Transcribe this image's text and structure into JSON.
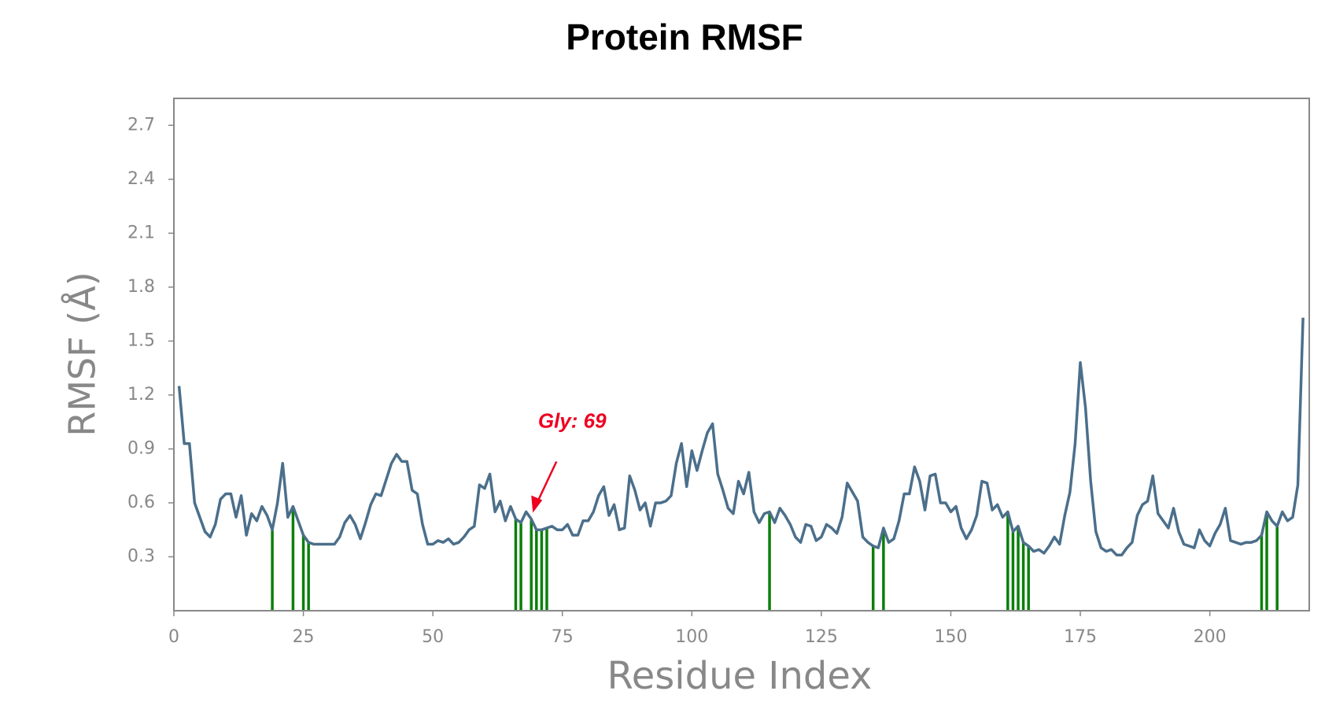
{
  "chart_data": {
    "type": "line",
    "title": "Protein RMSF",
    "xlabel": "Residue Index",
    "ylabel": "RMSF (Å)",
    "x": [
      1,
      2,
      3,
      4,
      5,
      6,
      7,
      8,
      9,
      10,
      11,
      12,
      13,
      14,
      15,
      16,
      17,
      18,
      19,
      20,
      21,
      22,
      23,
      24,
      25,
      26,
      27,
      28,
      29,
      30,
      31,
      32,
      33,
      34,
      35,
      36,
      37,
      38,
      39,
      40,
      41,
      42,
      43,
      44,
      45,
      46,
      47,
      48,
      49,
      50,
      51,
      52,
      53,
      54,
      55,
      56,
      57,
      58,
      59,
      60,
      61,
      62,
      63,
      64,
      65,
      66,
      67,
      68,
      69,
      70,
      71,
      72,
      73,
      74,
      75,
      76,
      77,
      78,
      79,
      80,
      81,
      82,
      83,
      84,
      85,
      86,
      87,
      88,
      89,
      90,
      91,
      92,
      93,
      94,
      95,
      96,
      97,
      98,
      99,
      100,
      101,
      102,
      103,
      104,
      105,
      106,
      107,
      108,
      109,
      110,
      111,
      112,
      113,
      114,
      115,
      116,
      117,
      118,
      119,
      120,
      121,
      122,
      123,
      124,
      125,
      126,
      127,
      128,
      129,
      130,
      131,
      132,
      133,
      134,
      135,
      136,
      137,
      138,
      139,
      140,
      141,
      142,
      143,
      144,
      145,
      146,
      147,
      148,
      149,
      150,
      151,
      152,
      153,
      154,
      155,
      156,
      157,
      158,
      159,
      160,
      161,
      162,
      163,
      164,
      165,
      166,
      167,
      168,
      169,
      170,
      171,
      172,
      173,
      174,
      175,
      176,
      177,
      178,
      179,
      180,
      181,
      182,
      183,
      184,
      185,
      186,
      187,
      188,
      189,
      190,
      191,
      192,
      193,
      194,
      195,
      196,
      197,
      198,
      199,
      200,
      201,
      202,
      203,
      204,
      205,
      206,
      207,
      208,
      209,
      210,
      211,
      212,
      213,
      214,
      215,
      216,
      217,
      218
    ],
    "values": [
      1.25,
      0.93,
      0.93,
      0.6,
      0.52,
      0.44,
      0.41,
      0.48,
      0.62,
      0.65,
      0.65,
      0.52,
      0.64,
      0.42,
      0.54,
      0.5,
      0.58,
      0.53,
      0.45,
      0.6,
      0.82,
      0.52,
      0.58,
      0.5,
      0.42,
      0.38,
      0.37,
      0.37,
      0.37,
      0.37,
      0.37,
      0.41,
      0.49,
      0.53,
      0.48,
      0.4,
      0.49,
      0.59,
      0.65,
      0.64,
      0.73,
      0.82,
      0.87,
      0.83,
      0.83,
      0.67,
      0.65,
      0.48,
      0.37,
      0.37,
      0.39,
      0.38,
      0.4,
      0.37,
      0.38,
      0.41,
      0.45,
      0.47,
      0.7,
      0.68,
      0.76,
      0.55,
      0.61,
      0.5,
      0.58,
      0.51,
      0.49,
      0.55,
      0.51,
      0.45,
      0.45,
      0.46,
      0.47,
      0.45,
      0.45,
      0.48,
      0.42,
      0.42,
      0.5,
      0.5,
      0.55,
      0.64,
      0.69,
      0.53,
      0.59,
      0.45,
      0.46,
      0.75,
      0.67,
      0.56,
      0.6,
      0.47,
      0.6,
      0.6,
      0.61,
      0.64,
      0.82,
      0.93,
      0.69,
      0.89,
      0.78,
      0.89,
      0.99,
      1.04,
      0.76,
      0.67,
      0.57,
      0.54,
      0.72,
      0.65,
      0.77,
      0.55,
      0.49,
      0.54,
      0.55,
      0.49,
      0.57,
      0.53,
      0.48,
      0.41,
      0.38,
      0.48,
      0.47,
      0.39,
      0.41,
      0.48,
      0.46,
      0.43,
      0.52,
      0.71,
      0.66,
      0.61,
      0.41,
      0.38,
      0.36,
      0.35,
      0.46,
      0.38,
      0.4,
      0.5,
      0.65,
      0.65,
      0.8,
      0.72,
      0.56,
      0.75,
      0.76,
      0.6,
      0.6,
      0.55,
      0.58,
      0.46,
      0.4,
      0.45,
      0.53,
      0.72,
      0.71,
      0.56,
      0.59,
      0.52,
      0.55,
      0.44,
      0.47,
      0.38,
      0.36,
      0.33,
      0.34,
      0.32,
      0.36,
      0.41,
      0.37,
      0.53,
      0.66,
      0.93,
      1.38,
      1.13,
      0.72,
      0.44,
      0.35,
      0.33,
      0.34,
      0.31,
      0.31,
      0.35,
      0.38,
      0.53,
      0.59,
      0.61,
      0.75,
      0.54,
      0.5,
      0.46,
      0.57,
      0.44,
      0.37,
      0.36,
      0.35,
      0.45,
      0.39,
      0.36,
      0.43,
      0.48,
      0.57,
      0.39,
      0.38,
      0.37,
      0.38,
      0.38,
      0.39,
      0.42,
      0.55,
      0.5,
      0.47,
      0.55,
      0.5,
      0.52,
      0.7,
      1.63
    ],
    "color": "#4b6f8b",
    "highlight_residues": [
      19,
      23,
      25,
      26,
      66,
      67,
      69,
      70,
      71,
      72,
      115,
      135,
      137,
      161,
      162,
      163,
      164,
      165,
      210,
      211,
      213
    ],
    "highlight_color": "#0b7f0b",
    "annotation": {
      "text": "Gly: 69",
      "residue": 69,
      "color": "#ee0020"
    },
    "xlim": [
      0,
      219.2
    ],
    "ylim": [
      0,
      2.85
    ],
    "xticks": [
      0,
      25,
      50,
      75,
      100,
      125,
      150,
      175,
      200
    ],
    "yticks": [
      0.3,
      0.6,
      0.9,
      1.2,
      1.5,
      1.8,
      2.1,
      2.4,
      2.7
    ]
  }
}
